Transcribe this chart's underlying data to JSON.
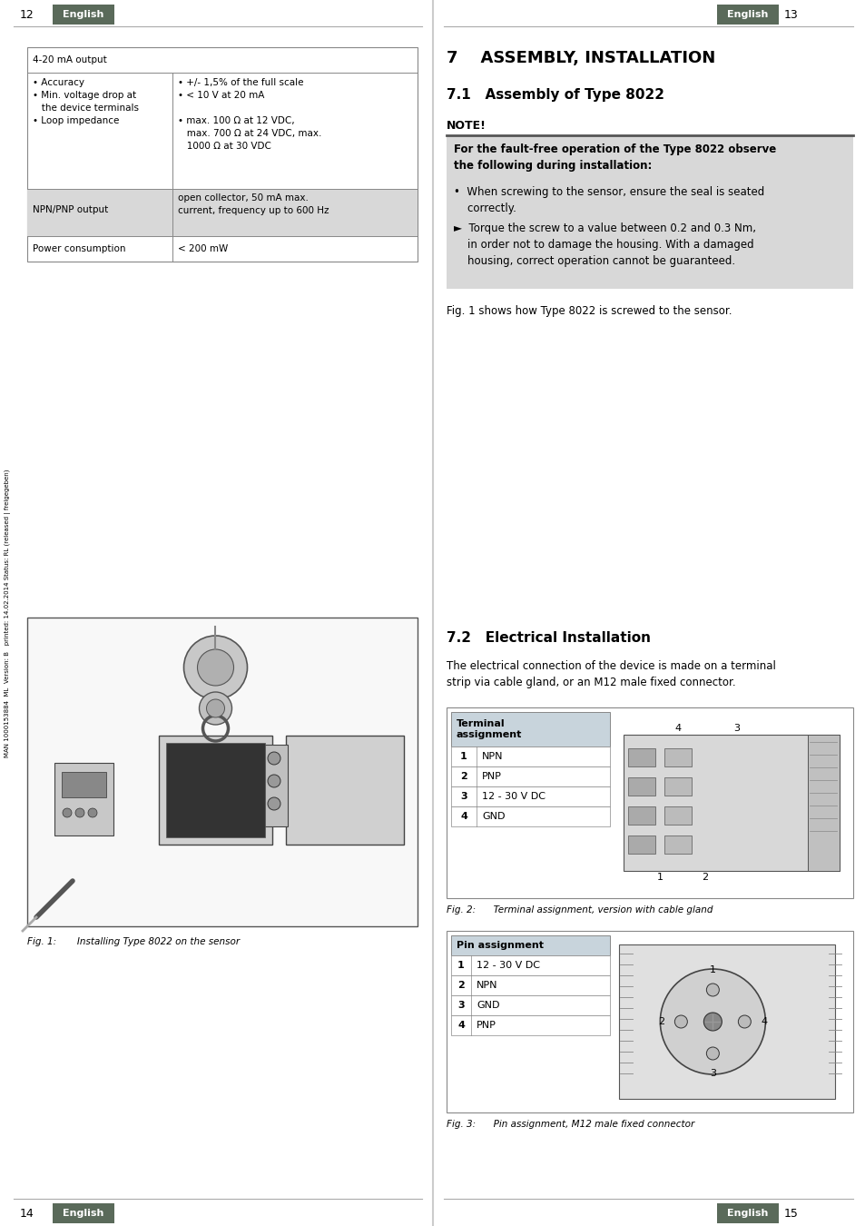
{
  "bg_color": "#ffffff",
  "label_bg": "#5a6a5a",
  "label_text": "#ffffff",
  "left_page": {
    "header_num": "12",
    "header_label": "English",
    "footer_num": "14",
    "footer_label": "English",
    "vertical_text": "MAN 1000153884  ML  Version: B   printed: 14.02.2014 Status: RL (released | freigegeben)",
    "fig1_caption": "Fig. 1:       Installing Type 8022 on the sensor"
  },
  "right_page": {
    "header_num": "13",
    "header_label": "English",
    "footer_num": "15",
    "footer_label": "English",
    "section_title": "7    ASSEMBLY, INSTALLATION",
    "subsection_title": "7.1   Assembly of Type 8022",
    "note_label": "NOTE!",
    "note_header_bold": "For the fault-free operation of the Type 8022 observe\nthe following during installation:",
    "note_bullet1": "•  When screwing to the sensor, ensure the seal is seated\n    correctly.",
    "note_bullet2": "►  Torque the screw to a value between 0.2 and 0.3 Nm,\n    in order not to damage the housing. With a damaged\n    housing, correct operation cannot be guaranteed.",
    "fig1_text": "Fig. 1 shows how Type 8022 is screwed to the sensor.",
    "section72_title": "7.2   Electrical Installation",
    "section72_intro": "The electrical connection of the device is made on a terminal\nstrip via cable gland, or an M12 male fixed connector.",
    "table1_header": "Terminal\nassignment",
    "table1_rows": [
      [
        "1",
        "NPN"
      ],
      [
        "2",
        "PNP"
      ],
      [
        "3",
        "12 - 30 V DC"
      ],
      [
        "4",
        "GND"
      ]
    ],
    "fig2_caption": "Fig. 2:      Terminal assignment, version with cable gland",
    "table2_header": "Pin assignment",
    "table2_rows": [
      [
        "1",
        "12 - 30 V DC"
      ],
      [
        "2",
        "NPN"
      ],
      [
        "3",
        "GND"
      ],
      [
        "4",
        "PNP"
      ]
    ],
    "fig3_caption": "Fig. 3:      Pin assignment, M12 male fixed connector"
  },
  "table_rows": [
    {
      "col1": "4-20 mA output",
      "col2": "",
      "bg": "#ffffff",
      "header": true
    },
    {
      "col1": "• Accuracy\n• Min. voltage drop at\n   the device terminals\n• Loop impedance",
      "col2": "• +/- 1,5% of the full scale\n• < 10 V at 20 mA\n\n• max. 100 Ω at 12 VDC,\n   max. 700 Ω at 24 VDC, max.\n   1000 Ω at 30 VDC",
      "bg": "#ffffff",
      "header": false
    },
    {
      "col1": "NPN/PNP output",
      "col2": "open collector, 50 mA max.\ncurrent, frequency up to 600 Hz",
      "bg": "#d8d8d8",
      "header": false
    },
    {
      "col1": "Power consumption",
      "col2": "< 200 mW",
      "bg": "#ffffff",
      "header": false
    }
  ]
}
